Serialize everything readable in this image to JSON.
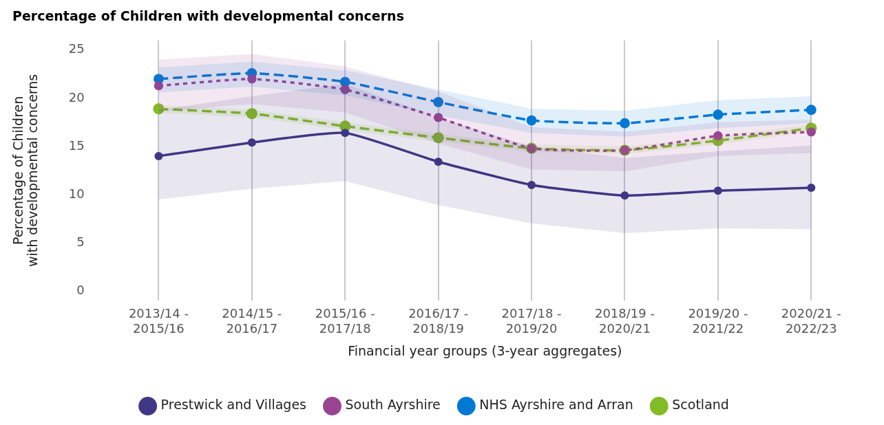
{
  "chart_data": {
    "type": "line",
    "title": "Percentage of Children with developmental concerns",
    "xlabel": "Financial year groups (3-year aggregates)",
    "ylabel": "Percentage of Children with developmental concerns",
    "categories": [
      "2013/14 - 2015/16",
      "2014/15 - 2016/17",
      "2015/16 - 2017/18",
      "2016/17 - 2018/19",
      "2017/18 - 2019/20",
      "2018/19 - 2020/21",
      "2019/20 - 2021/22",
      "2020/21 - 2022/23"
    ],
    "series": [
      {
        "name": "Prestwick and Villages",
        "color": "#3f3685",
        "line_style": "solid",
        "values": [
          14.0,
          15.4,
          16.4,
          13.4,
          11.0,
          9.9,
          10.4,
          10.7
        ],
        "lower": [
          9.5,
          10.6,
          11.4,
          8.9,
          7.0,
          6.0,
          6.5,
          6.4
        ],
        "upper": [
          18.8,
          20.2,
          21.5,
          18.0,
          15.0,
          13.8,
          14.5,
          15.1
        ]
      },
      {
        "name": "South Ayrshire",
        "color": "#9b4393",
        "line_style": "dotted",
        "values": [
          21.3,
          22.0,
          20.9,
          18.0,
          14.8,
          14.6,
          16.1,
          16.5
        ],
        "lower": [
          18.6,
          19.4,
          18.5,
          15.3,
          12.6,
          12.4,
          14.0,
          14.3
        ],
        "upper": [
          24.0,
          24.6,
          23.3,
          20.7,
          17.0,
          16.5,
          17.5,
          17.8
        ]
      },
      {
        "name": "NHS Ayrshire and Arran",
        "color": "#0078d4",
        "line_style": "dashed",
        "values": [
          22.0,
          22.6,
          21.7,
          19.6,
          17.7,
          17.4,
          18.3,
          18.8
        ],
        "lower": [
          20.6,
          21.2,
          20.3,
          18.2,
          16.4,
          16.0,
          16.9,
          17.4
        ],
        "upper": [
          23.2,
          23.8,
          22.9,
          20.9,
          18.9,
          18.7,
          19.8,
          20.2
        ]
      },
      {
        "name": "Scotland",
        "color": "#83bb26",
        "line_style": "dashed",
        "values": [
          18.9,
          18.4,
          17.1,
          15.9,
          14.8,
          14.6,
          15.6,
          16.9
        ],
        "lower": [
          18.5,
          18.0,
          16.7,
          15.5,
          14.4,
          14.2,
          15.2,
          16.5
        ],
        "upper": [
          19.3,
          18.8,
          17.5,
          16.3,
          15.2,
          15.0,
          16.0,
          17.3
        ]
      }
    ],
    "ylim": [
      -1,
      26
    ],
    "yticks": [
      0,
      5,
      10,
      15,
      20,
      25
    ],
    "grid": "x",
    "legend": "bottom",
    "marker": "circle"
  }
}
